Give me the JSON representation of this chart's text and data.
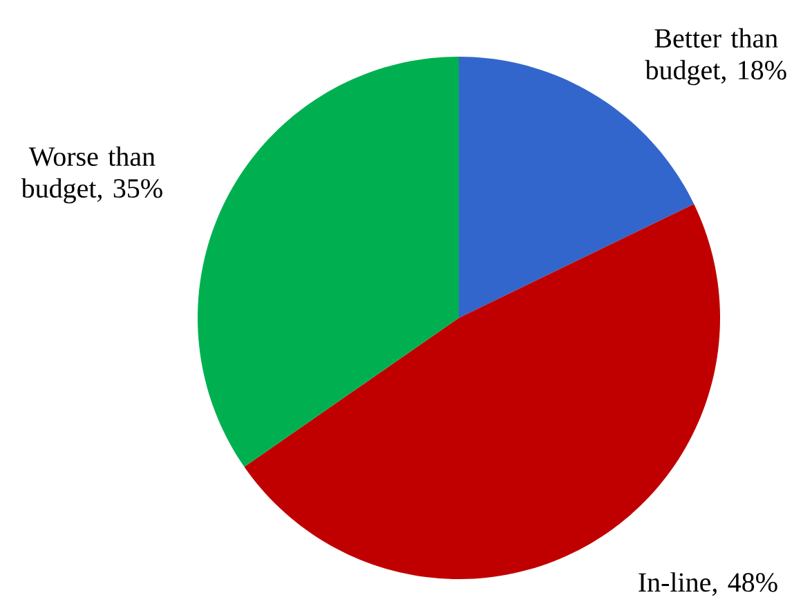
{
  "chart_data": {
    "type": "pie",
    "categories": [
      "Better than budget",
      "In-line",
      "Worse than budget"
    ],
    "values": [
      18,
      48,
      35
    ],
    "colors": [
      "#3366cc",
      "#c00000",
      "#00b050"
    ],
    "value_labels": [
      ", 18%",
      ", 48%",
      ", 35%"
    ]
  }
}
